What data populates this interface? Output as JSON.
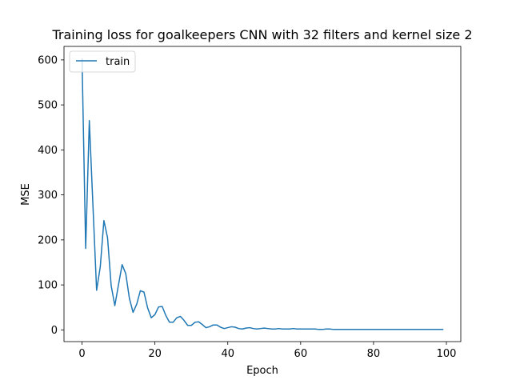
{
  "chart_data": {
    "type": "line",
    "title": "Training loss for goalkeepers CNN with 32 filters and kernel size 2",
    "xlabel": "Epoch",
    "ylabel": "MSE",
    "xlim": [
      -4.95,
      103.95
    ],
    "ylim": [
      -26,
      630
    ],
    "xticks": [
      0,
      20,
      40,
      60,
      80,
      100
    ],
    "yticks": [
      0,
      100,
      200,
      300,
      400,
      500,
      600
    ],
    "grid": false,
    "legend_position": "top-left",
    "series": [
      {
        "name": "train",
        "color": "#1f77b4",
        "x": [
          0,
          1,
          2,
          3,
          4,
          5,
          6,
          7,
          8,
          9,
          10,
          11,
          12,
          13,
          14,
          15,
          16,
          17,
          18,
          19,
          20,
          21,
          22,
          23,
          24,
          25,
          26,
          27,
          28,
          29,
          30,
          31,
          32,
          33,
          34,
          35,
          36,
          37,
          38,
          39,
          40,
          41,
          42,
          43,
          44,
          45,
          46,
          47,
          48,
          49,
          50,
          51,
          52,
          53,
          54,
          55,
          56,
          57,
          58,
          59,
          60,
          61,
          62,
          63,
          64,
          65,
          66,
          67,
          68,
          69,
          70,
          71,
          72,
          73,
          74,
          75,
          76,
          77,
          78,
          79,
          80,
          81,
          82,
          83,
          84,
          85,
          86,
          87,
          88,
          89,
          90,
          91,
          92,
          93,
          94,
          95,
          96,
          97,
          98,
          99
        ],
        "values": [
          602,
          181,
          465,
          275,
          88,
          140,
          243,
          205,
          98,
          54,
          100,
          145,
          125,
          70,
          39,
          57,
          87,
          84,
          49,
          27,
          34,
          51,
          52,
          32,
          17,
          17,
          27,
          30,
          21,
          10,
          10,
          17,
          18,
          12,
          5,
          7,
          11,
          11,
          6,
          3,
          5,
          7,
          6,
          3,
          2,
          4,
          5,
          3,
          2,
          3,
          4,
          3,
          2,
          2,
          3,
          2,
          2,
          2,
          3,
          2,
          2,
          2,
          2,
          2,
          2,
          1,
          1,
          2,
          2,
          1,
          1,
          1,
          1,
          1,
          1,
          1,
          1,
          1,
          1,
          1,
          1,
          1,
          1,
          1,
          1,
          1,
          1,
          1,
          1,
          1,
          1,
          1,
          1,
          1,
          1,
          1,
          1,
          1,
          1,
          1
        ]
      }
    ]
  }
}
